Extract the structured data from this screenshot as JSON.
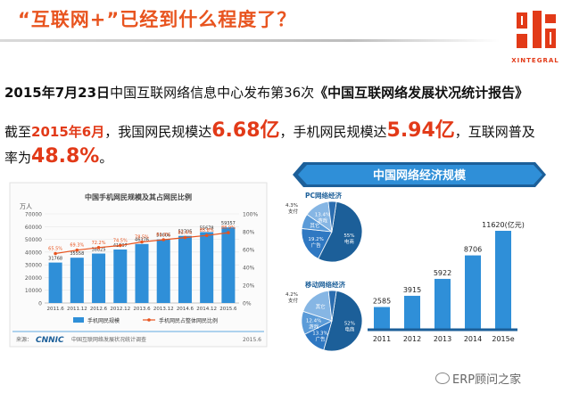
{
  "header": {
    "title": "“互联网+”已经到什么程度了？",
    "logo_text": "XINTEGRAL"
  },
  "body_text": {
    "line1_date": "2015年7月23日",
    "line1_mid": "中国互联网络信息中心发布第36次",
    "line1_report": "《中国互联网络发展状况统计报告》",
    "line2_prefix": "截至",
    "line2_date": "2015年6月",
    "line2_a": "，我国网民规模达",
    "line2_val1": "6.68亿",
    "line2_b": "，手机网民规模达",
    "line2_val2": "5.94亿",
    "line2_c": "，互联网普及",
    "line3_prefix": "率为",
    "line3_val": "48.8%",
    "line3_suffix": "。"
  },
  "chart_data": [
    {
      "type": "bar",
      "title": "中国手机网民规模及其占网民比例",
      "unit_label": "万人",
      "categories": [
        "2011.6",
        "2011.12",
        "2012.6",
        "2012.12",
        "2013.6",
        "2013.12",
        "2014.6",
        "2014.12",
        "2015.6"
      ],
      "series": [
        {
          "name": "手机网民规模",
          "values": [
            31768,
            35558,
            38825,
            41997,
            46376,
            50006,
            52705,
            55678,
            59357
          ],
          "color": "#2f8fd8"
        },
        {
          "name": "手机网民占整体网民比例",
          "values": [
            65.5,
            69.3,
            72.2,
            74.5,
            78.5,
            81.0,
            83.4,
            85.8,
            88.9
          ],
          "color": "#e8541f",
          "unit": "%"
        }
      ],
      "ylim": [
        0,
        70000
      ],
      "yticks": [
        "0",
        "10000",
        "20000",
        "30000",
        "40000",
        "50000",
        "60000",
        "70000"
      ],
      "y2lim": [
        0,
        100
      ],
      "y2ticks": [
        "0%",
        "20%",
        "40%",
        "60%",
        "80%",
        "100%"
      ],
      "source": "中国互联网络发展状况统计调查",
      "source_prefix": "来源：",
      "source_logo": "CNNIC",
      "date_label": "2015.6"
    },
    {
      "type": "bar",
      "title": "中国网络经济规模",
      "categories": [
        "2011",
        "2012",
        "2013",
        "2014",
        "2015e"
      ],
      "values": [
        2585,
        3915,
        5922,
        8706,
        11620
      ],
      "value_labels": [
        "2585",
        "3915",
        "5922",
        "8706",
        "11620(亿元)"
      ],
      "color": "#2f8fd8"
    },
    {
      "type": "pie",
      "title": "PC网络经济",
      "slices": [
        {
          "label": "电商",
          "value": 55,
          "text": "55%"
        },
        {
          "label": "广告",
          "value": 19.2,
          "text": "19.2%"
        },
        {
          "label": "其它",
          "value": 8.0,
          "text": "其它"
        },
        {
          "label": "游戏",
          "value": 13.4,
          "text": "13.4%"
        },
        {
          "label": "支付",
          "value": 4.3,
          "text": "4.3%"
        }
      ]
    },
    {
      "type": "pie",
      "title": "移动网络经济",
      "slices": [
        {
          "label": "电商",
          "value": 52,
          "text": "52%"
        },
        {
          "label": "广告",
          "value": 13.3,
          "text": "13.3%"
        },
        {
          "label": "游戏",
          "value": 12.4,
          "text": "12.4%"
        },
        {
          "label": "其它",
          "value": 18.1,
          "text": "其它"
        },
        {
          "label": "支付",
          "value": 4.2,
          "text": "4.2%"
        }
      ]
    }
  ],
  "watermark": "ERP顾问之家",
  "colors": {
    "accent": "#e8541f",
    "blue": "#2f8fd8",
    "dark_blue": "#1c5f99",
    "red": "#e23a18"
  }
}
